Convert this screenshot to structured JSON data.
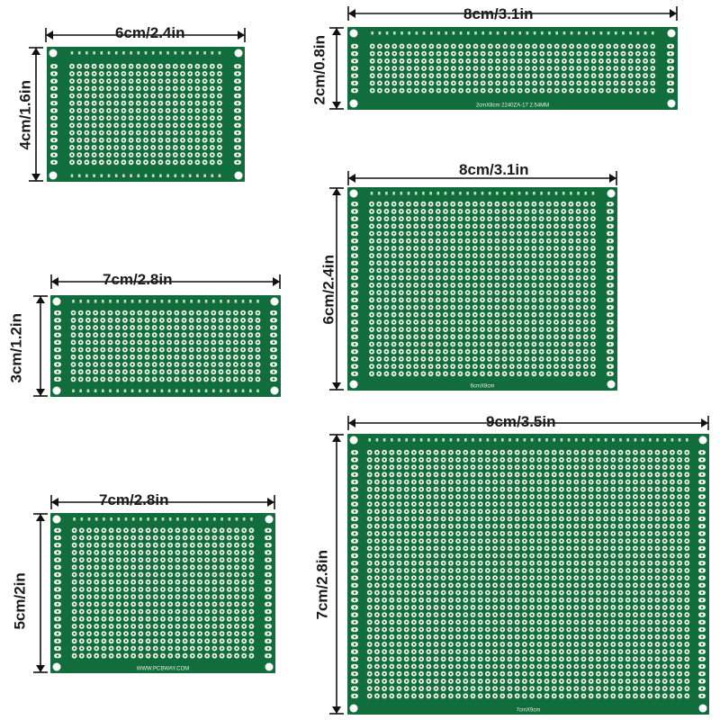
{
  "boards": [
    {
      "id": "pcb-4x6",
      "width_label": "6cm/2.4in",
      "height_label": "4cm/1.6in",
      "board_color": "#116e3c"
    },
    {
      "id": "pcb-2x8",
      "width_label": "8cm/3.1in",
      "height_label": "2cm/0.8in",
      "board_color": "#116e3c",
      "silkscreen": "2cmX8cm    2240ZA-17 2.54MM"
    },
    {
      "id": "pcb-3x7",
      "width_label": "7cm/2.8in",
      "height_label": "3cm/1.2in",
      "board_color": "#116e3c"
    },
    {
      "id": "pcb-6x8",
      "width_label": "8cm/3.1in",
      "height_label": "6cm/2.4in",
      "board_color": "#116e3c",
      "silkscreen": "6cmX8cm"
    },
    {
      "id": "pcb-5x7",
      "width_label": "7cm/2.8in",
      "height_label": "5cm/2in",
      "board_color": "#116e3c",
      "silkscreen": "WWW.PCBWAY.COM"
    },
    {
      "id": "pcb-7x9",
      "width_label": "9cm/3.5in",
      "height_label": "7cm/2.8in",
      "board_color": "#116e3c",
      "silkscreen": "7cmX9cm"
    }
  ],
  "colors": {
    "pad": "#eef3ea",
    "hole": "#0d5a30",
    "arrow": "#111111",
    "silk": "#e8f0e8"
  }
}
